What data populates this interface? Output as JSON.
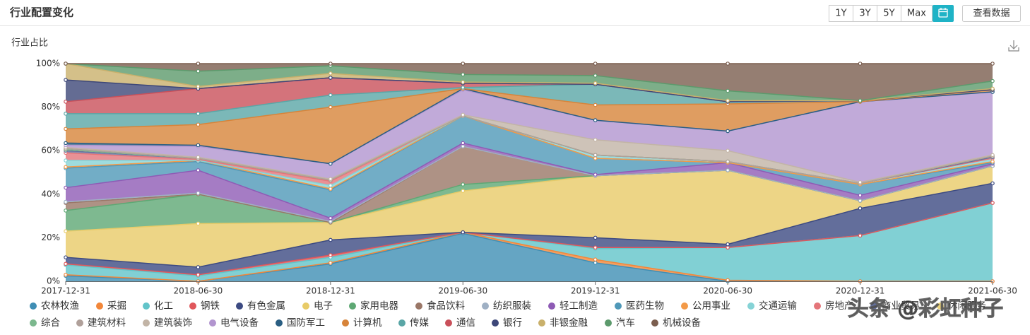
{
  "header": {
    "title": "行业配置变化",
    "buttons": [
      "1Y",
      "3Y",
      "5Y",
      "Max"
    ],
    "view_data_button": "查看数据"
  },
  "watermark": "头条 @彩虹种子",
  "chart_data": {
    "type": "stacked_area",
    "title": "行业占比",
    "categories": [
      "2017-12-31",
      "2018-06-30",
      "2018-12-31",
      "2019-06-30",
      "2019-12-31",
      "2020-06-30",
      "2020-12-31",
      "2021-06-30"
    ],
    "ylim": [
      0,
      100
    ],
    "yticks": [
      {
        "value": 0,
        "label": "0%"
      },
      {
        "value": 20,
        "label": "20%"
      },
      {
        "value": 40,
        "label": "40%"
      },
      {
        "value": 60,
        "label": "60%"
      },
      {
        "value": 80,
        "label": "80%"
      },
      {
        "value": 100,
        "label": "100%"
      }
    ],
    "grid": false,
    "series": [
      {
        "name": "农林牧渔",
        "color": "#3f8eb4",
        "values": [
          2.5,
          0,
          8,
          22,
          8.5,
          0,
          0,
          0
        ]
      },
      {
        "name": "采掘",
        "color": "#f2873a",
        "values": [
          0.5,
          0,
          0.5,
          0.5,
          1.5,
          0.5,
          0,
          0
        ]
      },
      {
        "name": "化工",
        "color": "#62c4c9",
        "values": [
          4.5,
          2.5,
          2.5,
          0,
          5,
          15,
          21,
          36
        ]
      },
      {
        "name": "钢铁",
        "color": "#e0575b",
        "values": [
          0.5,
          0.5,
          1,
          0,
          0.5,
          0,
          0,
          0
        ]
      },
      {
        "name": "有色金属",
        "color": "#3c4a82",
        "values": [
          3,
          3.5,
          7,
          0,
          4.5,
          1.5,
          12.5,
          9
        ]
      },
      {
        "name": "电子",
        "color": "#e8cb68",
        "values": [
          12,
          20,
          8,
          19,
          28.5,
          34,
          3.5,
          8
        ]
      },
      {
        "name": "家用电器",
        "color": "#5ea874",
        "values": [
          9.5,
          13.5,
          0,
          3,
          0,
          0,
          0,
          0
        ]
      },
      {
        "name": "食品饮料",
        "color": "#9a7767",
        "values": [
          3.5,
          0,
          0,
          17.5,
          0,
          0,
          0,
          0
        ]
      },
      {
        "name": "纺织服装",
        "color": "#9fb0c4",
        "values": [
          0.5,
          0.5,
          0.5,
          0,
          0,
          0,
          0,
          0
        ]
      },
      {
        "name": "轻工制造",
        "color": "#8e5bb5",
        "values": [
          6.5,
          10.5,
          1.5,
          1.5,
          0.5,
          3.5,
          2.5,
          1
        ]
      },
      {
        "name": "医药生物",
        "color": "#4f98b8",
        "values": [
          9,
          4,
          13,
          12.5,
          7.5,
          0,
          5,
          0.5
        ]
      },
      {
        "name": "公用事业",
        "color": "#f39a48",
        "values": [
          0.5,
          0.5,
          0.5,
          0,
          0,
          0,
          0,
          0.5
        ]
      },
      {
        "name": "交通运输",
        "color": "#86d3d6",
        "values": [
          3,
          0,
          1.5,
          0,
          1.5,
          0.5,
          0.5,
          1.5
        ]
      },
      {
        "name": "房地产",
        "color": "#e4757a",
        "values": [
          3.5,
          0.5,
          2,
          0,
          0,
          0,
          0,
          0
        ]
      },
      {
        "name": "商业贸易",
        "color": "#64709e",
        "values": [
          1,
          0.5,
          0.5,
          0,
          0,
          0,
          0,
          0.5
        ]
      },
      {
        "name": "休闲服务",
        "color": "#ecd57e",
        "values": [
          0.5,
          0,
          0,
          0,
          0,
          0,
          0,
          0.5
        ]
      },
      {
        "name": "综合",
        "color": "#7cb88e",
        "values": [
          0,
          0,
          0,
          0,
          0,
          0,
          0,
          0
        ]
      },
      {
        "name": "建筑材料",
        "color": "#b0a09a",
        "values": [
          0.5,
          0,
          0,
          0,
          0,
          0,
          0,
          0
        ]
      },
      {
        "name": "建筑装饰",
        "color": "#c2b4a6",
        "values": [
          0.5,
          0.5,
          0.5,
          0.5,
          7,
          5,
          0.5,
          0.5
        ]
      },
      {
        "name": "电气设备",
        "color": "#b295cf",
        "values": [
          1,
          5,
          7,
          11.5,
          9,
          9,
          37,
          29
        ]
      },
      {
        "name": "国防军工",
        "color": "#2a5e82",
        "values": [
          1,
          0.5,
          0,
          0.5,
          0,
          0,
          0,
          0
        ]
      },
      {
        "name": "计算机",
        "color": "#d7843a",
        "values": [
          6.5,
          9.5,
          26,
          0,
          7,
          12.5,
          0,
          1
        ]
      },
      {
        "name": "传媒",
        "color": "#5aa6a6",
        "values": [
          7,
          5,
          5.5,
          0.5,
          9.5,
          1,
          0.5,
          0
        ]
      },
      {
        "name": "通信",
        "color": "#c9505a",
        "values": [
          5.5,
          11.5,
          8,
          2,
          0,
          0,
          0,
          0
        ]
      },
      {
        "name": "银行",
        "color": "#3d4778",
        "values": [
          10,
          0,
          0,
          0,
          0,
          0,
          0,
          0
        ]
      },
      {
        "name": "非银金融",
        "color": "#c9b06b",
        "values": [
          7.5,
          1,
          2,
          0.5,
          0.5,
          0.5,
          0,
          0.5
        ]
      },
      {
        "name": "汽车",
        "color": "#5c9a6c",
        "values": [
          0,
          7,
          3.5,
          3.5,
          3.5,
          4.5,
          0,
          3.5
        ]
      },
      {
        "name": "机械设备",
        "color": "#7b5e4f",
        "values": [
          0,
          3.5,
          1,
          5,
          5.5,
          12.5,
          17,
          8
        ]
      }
    ]
  }
}
